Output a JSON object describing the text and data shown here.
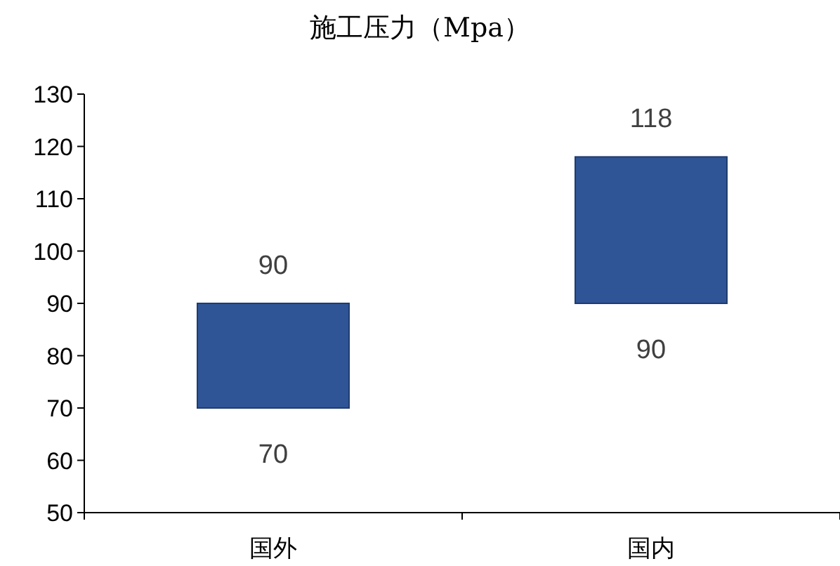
{
  "chart_data": {
    "type": "bar",
    "title": "施工压力（Mpa）",
    "categories": [
      "国外",
      "国内"
    ],
    "base": [
      70,
      90
    ],
    "values": [
      20,
      28
    ],
    "color": "#2f5597",
    "ylim": [
      50,
      130
    ],
    "yticks": [
      50,
      60,
      70,
      80,
      90,
      100,
      110,
      120,
      130
    ],
    "annotations": [
      {
        "text": "90",
        "x": "国外",
        "y": 90
      },
      {
        "text": "70",
        "x": "国外",
        "y": 70
      },
      {
        "text": "118",
        "x": "国内",
        "y": 118
      },
      {
        "text": "90",
        "x": "国内",
        "y": 90
      }
    ]
  }
}
